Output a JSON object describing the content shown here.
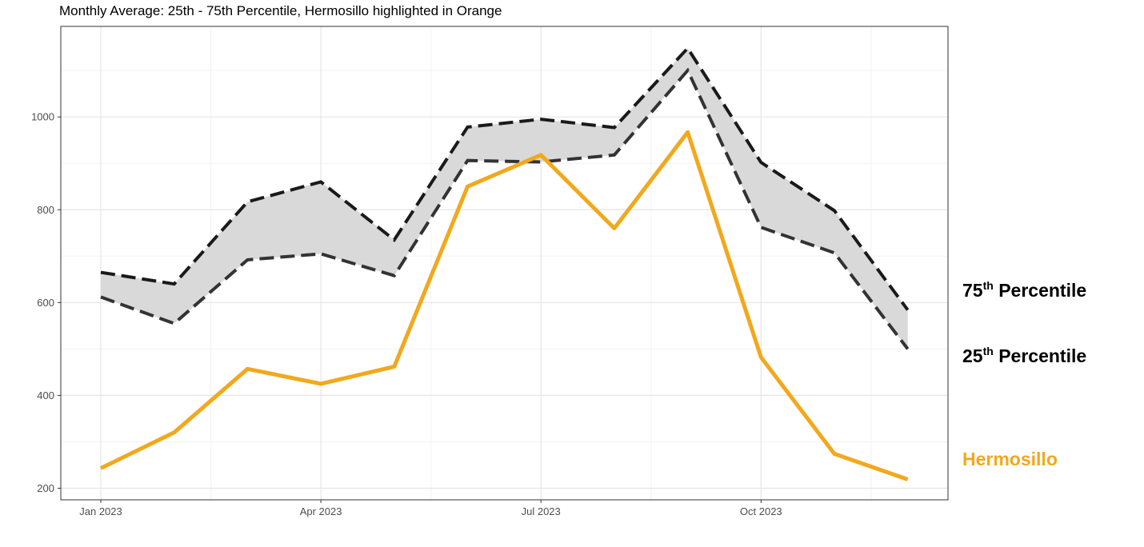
{
  "chart_data": {
    "type": "line",
    "title": "Monthly Average: 25th - 75th Percentile, Hermosillo highlighted in Orange",
    "xlabel": "",
    "ylabel": "",
    "x": [
      "2023-01",
      "2023-02",
      "2023-03",
      "2023-04",
      "2023-05",
      "2023-06",
      "2023-07",
      "2023-08",
      "2023-09",
      "2023-10",
      "2023-11",
      "2023-12"
    ],
    "x_tick_labels": [
      "Jan 2023",
      "Apr 2023",
      "Jul 2023",
      "Oct 2023"
    ],
    "y_ticks": [
      "200",
      "400",
      "600",
      "800",
      "1000"
    ],
    "ylim": [
      175,
      1195
    ],
    "grid": true,
    "series": [
      {
        "name": "Hermosillo",
        "color": "#F2A81D",
        "values": [
          243,
          320,
          457,
          425,
          462,
          850,
          918,
          760,
          967,
          482,
          274,
          219
        ]
      }
    ],
    "band": {
      "fill": "#D9D9D9",
      "upper": [
        665,
        640,
        817,
        860,
        735,
        978,
        995,
        977,
        1148,
        902,
        798,
        584
      ],
      "lower": [
        612,
        555,
        692,
        705,
        658,
        906,
        903,
        918,
        1100,
        762,
        707,
        500
      ]
    },
    "labels": {
      "p75": {
        "base": "75",
        "sup": "th",
        "rest": " Percentile",
        "color": "#000000"
      },
      "p25": {
        "base": "25",
        "sup": "th",
        "rest": " Percentile",
        "color": "#000000"
      },
      "herm": {
        "text": "Hermosillo",
        "color": "#F2A81D"
      }
    }
  }
}
